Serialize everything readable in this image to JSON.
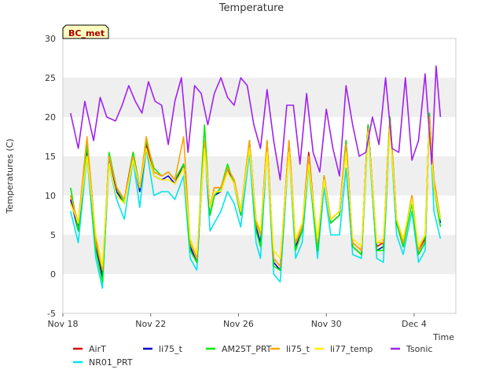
{
  "chart_data": {
    "type": "line",
    "title": "Temperature",
    "xlabel": "Time",
    "ylabel": "Temperatures (C)",
    "ylim": [
      -5,
      30
    ],
    "yticks": [
      -5,
      0,
      5,
      10,
      15,
      20,
      25,
      30
    ],
    "xlim": [
      0,
      17.9
    ],
    "xticks": [
      {
        "value": 0,
        "label": "Nov 18"
      },
      {
        "value": 4,
        "label": "Nov 22"
      },
      {
        "value": 8,
        "label": "Nov 26"
      },
      {
        "value": 12,
        "label": "Nov 30"
      },
      {
        "value": 16,
        "label": "Dec 4"
      }
    ],
    "station_label": "BC_met",
    "grid": "horizontal bands",
    "legend_position": "bottom",
    "series": [
      {
        "name": "AirT",
        "color": "#dd0000",
        "x": [
          0.35,
          0.7,
          1.1,
          1.5,
          1.8,
          2.1,
          2.45,
          2.8,
          3.2,
          3.5,
          3.8,
          4.15,
          4.5,
          4.8,
          5.1,
          5.5,
          5.8,
          6.1,
          6.45,
          6.7,
          6.9,
          7.2,
          7.5,
          7.8,
          8.1,
          8.5,
          8.8,
          9.0,
          9.3,
          9.6,
          9.9,
          10.3,
          10.6,
          10.9,
          11.2,
          11.6,
          11.9,
          12.2,
          12.6,
          12.9,
          13.2,
          13.6,
          13.9,
          14.3,
          14.6,
          14.9,
          15.2,
          15.5,
          15.9,
          16.2,
          16.5,
          16.7,
          16.9,
          17.2
        ],
        "y": [
          10,
          6,
          17,
          4.5,
          0,
          15,
          11,
          9.5,
          15.5,
          11,
          16.5,
          13,
          12.5,
          13,
          12,
          14,
          4,
          2,
          16.5,
          8.5,
          11,
          11,
          13.5,
          12,
          8,
          16.5,
          7,
          5,
          17,
          2,
          1,
          17,
          4,
          6,
          15.5,
          3.5,
          12.5,
          7,
          8,
          17,
          4,
          3,
          19,
          3.5,
          4,
          20,
          7,
          4,
          10,
          3,
          4.5,
          20,
          12,
          7
        ]
      },
      {
        "name": "NR01_PRT",
        "color": "#00e5ee",
        "x": [
          0.35,
          0.7,
          1.1,
          1.5,
          1.8,
          2.1,
          2.45,
          2.8,
          3.2,
          3.5,
          3.8,
          4.15,
          4.5,
          4.8,
          5.1,
          5.5,
          5.8,
          6.1,
          6.45,
          6.7,
          6.9,
          7.2,
          7.5,
          7.8,
          8.1,
          8.5,
          8.8,
          9.0,
          9.3,
          9.6,
          9.9,
          10.3,
          10.6,
          10.9,
          11.2,
          11.6,
          11.9,
          12.2,
          12.6,
          12.9,
          13.2,
          13.6,
          13.9,
          14.3,
          14.6,
          14.9,
          15.2,
          15.5,
          15.9,
          16.2,
          16.5,
          16.7,
          16.9,
          17.2
        ],
        "y": [
          8,
          4,
          15,
          2,
          -1.8,
          14,
          9.5,
          7,
          14.5,
          8.5,
          16,
          10,
          10.5,
          10.5,
          9.5,
          12.5,
          2,
          0.5,
          17,
          5.5,
          6.5,
          8,
          10.5,
          9,
          6,
          15.5,
          4,
          2,
          16,
          0,
          -1,
          16,
          2,
          4,
          14,
          2,
          11,
          5,
          5,
          13.5,
          2.5,
          2,
          18,
          2,
          1.5,
          19,
          5,
          2.5,
          8,
          1.5,
          3,
          20,
          8,
          4.5
        ]
      },
      {
        "name": "li75_t",
        "color": "#0000cc",
        "x": [
          0.35,
          0.7,
          1.1,
          1.5,
          1.8,
          2.1,
          2.45,
          2.8,
          3.2,
          3.5,
          3.8,
          4.15,
          4.5,
          4.8,
          5.1,
          5.5,
          5.8,
          6.1,
          6.45,
          6.7,
          6.9,
          7.2,
          7.5,
          7.8,
          8.1,
          8.5,
          8.8,
          9.0,
          9.3,
          9.6,
          9.9,
          10.3,
          10.6,
          10.9,
          11.2,
          11.6,
          11.9,
          12.2,
          12.6,
          12.9,
          13.2,
          13.6,
          13.9,
          14.3,
          14.6,
          14.9,
          15.2,
          15.5,
          15.9,
          16.2,
          16.5,
          16.7,
          16.9,
          17.2
        ],
        "y": [
          9.5,
          5.5,
          16,
          3.5,
          -0.5,
          15,
          10.5,
          9,
          15,
          10.5,
          16,
          12.5,
          12,
          12.5,
          11.5,
          14,
          3.5,
          1.5,
          17,
          7.5,
          10,
          10.5,
          13.5,
          11.5,
          7.5,
          17,
          6,
          4,
          16.5,
          1.5,
          0.5,
          16.5,
          3.5,
          5.5,
          14.5,
          3,
          12.5,
          6.5,
          7.5,
          16,
          3.5,
          2.5,
          19,
          3,
          3.5,
          19.5,
          6.5,
          3.5,
          9.5,
          2.5,
          4,
          20,
          11,
          6.5
        ]
      },
      {
        "name": "AM25T_PRT",
        "color": "#00ee00",
        "x": [
          0.35,
          0.7,
          1.1,
          1.5,
          1.8,
          2.1,
          2.45,
          2.8,
          3.2,
          3.5,
          3.8,
          4.15,
          4.5,
          4.8,
          5.1,
          5.5,
          5.8,
          6.1,
          6.45,
          6.7,
          6.9,
          7.2,
          7.5,
          7.8,
          8.1,
          8.5,
          8.8,
          9.0,
          9.3,
          9.6,
          9.9,
          10.3,
          10.6,
          10.9,
          11.2,
          11.6,
          11.9,
          12.2,
          12.6,
          12.9,
          13.2,
          13.6,
          13.9,
          14.3,
          14.6,
          14.9,
          15.2,
          15.5,
          15.9,
          16.2,
          16.5,
          16.7,
          16.9,
          17.2
        ],
        "y": [
          11,
          5.5,
          16.5,
          3,
          -1,
          15.5,
          11,
          9,
          15.5,
          11,
          17,
          13.5,
          12.5,
          13,
          12,
          14,
          3,
          1.5,
          19,
          7.5,
          10,
          11,
          14,
          11.5,
          7.5,
          17,
          5.5,
          3.5,
          17,
          1,
          0.5,
          16.5,
          3,
          5.5,
          14,
          3,
          12.5,
          6.5,
          7.5,
          17,
          3.5,
          2.5,
          19,
          3,
          3,
          20,
          6.5,
          3.5,
          9,
          2.5,
          4,
          20.5,
          11,
          6
        ]
      },
      {
        "name": "li75_t",
        "color": "#ffa500",
        "x": [
          0.35,
          0.7,
          1.1,
          1.5,
          1.8,
          2.1,
          2.45,
          2.8,
          3.2,
          3.5,
          3.8,
          4.15,
          4.5,
          4.8,
          5.1,
          5.5,
          5.8,
          6.1,
          6.45,
          6.7,
          6.9,
          7.2,
          7.5,
          7.8,
          8.1,
          8.5,
          8.8,
          9.0,
          9.3,
          9.6,
          9.9,
          10.3,
          10.6,
          10.9,
          11.2,
          11.6,
          11.9,
          12.2,
          12.6,
          12.9,
          13.2,
          13.6,
          13.9,
          14.3,
          14.6,
          14.9,
          15.2,
          15.5,
          15.9,
          16.2,
          16.5,
          16.7,
          16.9,
          17.2
        ],
        "y": [
          10,
          6.5,
          17.5,
          4,
          0.5,
          15,
          11,
          9.5,
          15,
          11,
          17.5,
          13,
          12.5,
          13,
          12,
          17.5,
          4,
          2,
          17,
          8.5,
          11,
          11,
          13.5,
          12,
          8,
          17,
          6.5,
          5,
          17,
          2,
          1,
          17,
          4,
          6,
          15,
          4,
          12.5,
          7,
          8,
          16.5,
          4,
          3,
          18.5,
          4,
          4,
          19.5,
          7,
          4,
          10,
          3,
          5,
          20,
          12,
          7
        ]
      },
      {
        "name": "li77_temp",
        "color": "#ffee00",
        "x": [
          0.35,
          0.7,
          1.1,
          1.5,
          1.8,
          2.1,
          2.45,
          2.8,
          3.2,
          3.5,
          3.8,
          4.15,
          4.5,
          4.8,
          5.1,
          5.5,
          5.8,
          6.1,
          6.45,
          6.7,
          6.9,
          7.2,
          7.5,
          7.8,
          8.1,
          8.5,
          8.8,
          9.0,
          9.3,
          9.6,
          9.9,
          10.3,
          10.6,
          10.9,
          11.2,
          11.6,
          11.9,
          12.2,
          12.6,
          12.9,
          13.2,
          13.6,
          13.9,
          14.3,
          14.6,
          14.9,
          15.2,
          15.5,
          15.9,
          16.2,
          16.5,
          16.7,
          16.9,
          17.2
        ],
        "y": [
          9,
          6.5,
          15,
          5,
          1,
          14,
          10,
          9,
          14.5,
          11,
          16,
          12.5,
          12,
          12,
          11.5,
          13.5,
          4.5,
          2.5,
          16,
          8.5,
          10.5,
          10.5,
          13,
          11.5,
          8,
          16,
          7,
          5.5,
          15.5,
          3,
          2,
          15.5,
          4.5,
          6.5,
          14,
          4.5,
          12,
          7,
          8,
          15.5,
          4.5,
          3.5,
          18,
          4,
          4.5,
          18.5,
          7,
          4.5,
          9.5,
          3.5,
          5,
          19,
          11,
          7
        ]
      },
      {
        "name": "Tsonic",
        "color": "#a020f0",
        "x": [
          0.35,
          0.7,
          1.0,
          1.4,
          1.7,
          2.0,
          2.4,
          2.7,
          3.0,
          3.3,
          3.6,
          3.9,
          4.2,
          4.5,
          4.8,
          5.1,
          5.4,
          5.7,
          6.0,
          6.3,
          6.6,
          6.9,
          7.2,
          7.5,
          7.8,
          8.1,
          8.4,
          8.7,
          9.0,
          9.3,
          9.6,
          9.9,
          10.2,
          10.5,
          10.8,
          11.1,
          11.4,
          11.7,
          12.0,
          12.3,
          12.6,
          12.9,
          13.2,
          13.5,
          13.8,
          14.1,
          14.4,
          14.7,
          15.0,
          15.3,
          15.6,
          15.9,
          16.2,
          16.5,
          16.8,
          17.0,
          17.2
        ],
        "y": [
          20.5,
          16,
          22,
          17,
          22.5,
          20,
          19.5,
          21.5,
          24,
          22,
          20.5,
          24.5,
          22,
          21.5,
          16.5,
          22,
          25,
          15.5,
          24,
          23,
          19,
          23,
          25,
          22.5,
          21.5,
          25,
          24,
          19,
          16,
          23.5,
          17,
          12,
          21.5,
          21.5,
          14,
          23,
          15.5,
          13,
          21,
          16,
          12.5,
          24,
          19,
          15,
          15.5,
          20,
          16.5,
          25,
          16,
          15.5,
          25,
          14.5,
          17,
          25.5,
          14,
          26.5,
          20
        ]
      }
    ]
  }
}
